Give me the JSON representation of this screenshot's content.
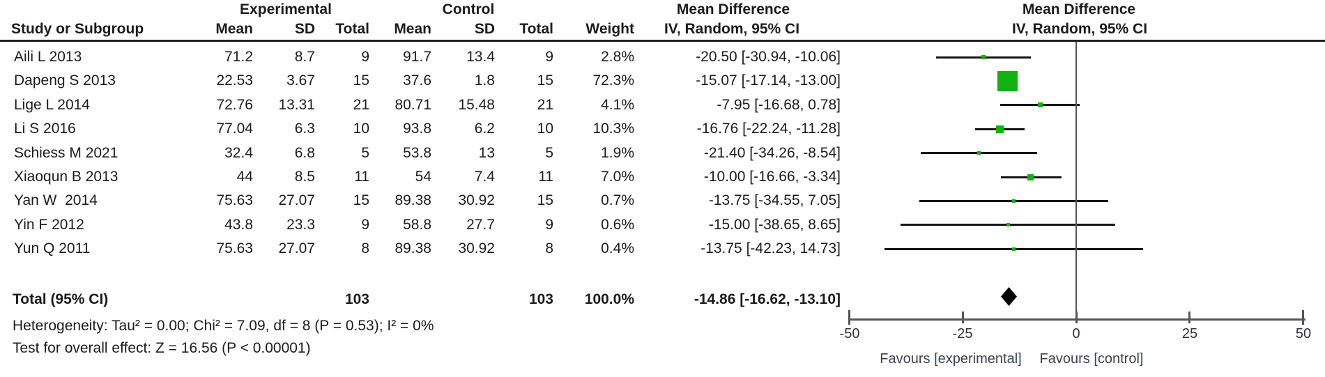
{
  "header": {
    "group_experimental": "Experimental",
    "group_control": "Control",
    "group_md_left": "Mean Difference",
    "group_md_right": "Mean Difference",
    "col_study": "Study or Subgroup",
    "col_mean_exp": "Mean",
    "col_sd_exp": "SD",
    "col_total_exp": "Total",
    "col_mean_ctl": "Mean",
    "col_sd_ctl": "SD",
    "col_total_ctl": "Total",
    "col_weight": "Weight",
    "col_ci_left": "IV, Random, 95% CI",
    "col_ci_right": "IV, Random, 95% CI"
  },
  "chart_data": {
    "type": "forest",
    "effect_measure": "Mean Difference",
    "method_label": "IV, Random, 95% CI",
    "studies": [
      {
        "name": "Aili L 2013",
        "exp_mean": "71.2",
        "exp_sd": "8.7",
        "exp_total": "9",
        "ctl_mean": "91.7",
        "ctl_sd": "13.4",
        "ctl_total": "9",
        "weight": "2.8%",
        "weight_value": 2.8,
        "ci_label": "-20.50 [-30.94, -10.06]",
        "md": -20.5,
        "ci_low": -30.94,
        "ci_high": -10.06
      },
      {
        "name": "Dapeng S 2013",
        "exp_mean": "22.53",
        "exp_sd": "3.67",
        "exp_total": "15",
        "ctl_mean": "37.6",
        "ctl_sd": "1.8",
        "ctl_total": "15",
        "weight": "72.3%",
        "weight_value": 72.3,
        "ci_label": "-15.07 [-17.14, -13.00]",
        "md": -15.07,
        "ci_low": -17.14,
        "ci_high": -13.0
      },
      {
        "name": "Lige L 2014",
        "exp_mean": "72.76",
        "exp_sd": "13.31",
        "exp_total": "21",
        "ctl_mean": "80.71",
        "ctl_sd": "15.48",
        "ctl_total": "21",
        "weight": "4.1%",
        "weight_value": 4.1,
        "ci_label": "-7.95 [-16.68, 0.78]",
        "md": -7.95,
        "ci_low": -16.68,
        "ci_high": 0.78
      },
      {
        "name": "Li S 2016",
        "exp_mean": "77.04",
        "exp_sd": "6.3",
        "exp_total": "10",
        "ctl_mean": "93.8",
        "ctl_sd": "6.2",
        "ctl_total": "10",
        "weight": "10.3%",
        "weight_value": 10.3,
        "ci_label": "-16.76 [-22.24, -11.28]",
        "md": -16.76,
        "ci_low": -22.24,
        "ci_high": -11.28
      },
      {
        "name": "Schiess M 2021",
        "exp_mean": "32.4",
        "exp_sd": "6.8",
        "exp_total": "5",
        "ctl_mean": "53.8",
        "ctl_sd": "13",
        "ctl_total": "5",
        "weight": "1.9%",
        "weight_value": 1.9,
        "ci_label": "-21.40 [-34.26, -8.54]",
        "md": -21.4,
        "ci_low": -34.26,
        "ci_high": -8.54
      },
      {
        "name": "Xiaoqun B 2013",
        "exp_mean": "44",
        "exp_sd": "8.5",
        "exp_total": "11",
        "ctl_mean": "54",
        "ctl_sd": "7.4",
        "ctl_total": "11",
        "weight": "7.0%",
        "weight_value": 7.0,
        "ci_label": "-10.00 [-16.66, -3.34]",
        "md": -10.0,
        "ci_low": -16.66,
        "ci_high": -3.34
      },
      {
        "name": "Yan W  2014",
        "exp_mean": "75.63",
        "exp_sd": "27.07",
        "exp_total": "15",
        "ctl_mean": "89.38",
        "ctl_sd": "30.92",
        "ctl_total": "15",
        "weight": "0.7%",
        "weight_value": 0.7,
        "ci_label": "-13.75 [-34.55, 7.05]",
        "md": -13.75,
        "ci_low": -34.55,
        "ci_high": 7.05
      },
      {
        "name": "Yin F 2012",
        "exp_mean": "43.8",
        "exp_sd": "23.3",
        "exp_total": "9",
        "ctl_mean": "58.8",
        "ctl_sd": "27.7",
        "ctl_total": "9",
        "weight": "0.6%",
        "weight_value": 0.6,
        "ci_label": "-15.00 [-38.65, 8.65]",
        "md": -15.0,
        "ci_low": -38.65,
        "ci_high": 8.65
      },
      {
        "name": "Yun Q 2011",
        "exp_mean": "75.63",
        "exp_sd": "27.07",
        "exp_total": "8",
        "ctl_mean": "89.38",
        "ctl_sd": "30.92",
        "ctl_total": "8",
        "weight": "0.4%",
        "weight_value": 0.4,
        "ci_label": "-13.75 [-42.23, 14.73]",
        "md": -13.75,
        "ci_low": -42.23,
        "ci_high": 14.73
      }
    ],
    "total": {
      "label": "Total (95% CI)",
      "exp_total": "103",
      "ctl_total": "103",
      "weight": "100.0%",
      "ci_label": "-14.86 [-16.62, -13.10]",
      "md": -14.86,
      "ci_low": -16.62,
      "ci_high": -13.1
    },
    "heterogeneity_text": "Heterogeneity: Tau² = 0.00; Chi² = 7.09, df = 8 (P = 0.53); I² = 0%",
    "overall_effect_text": "Test for overall effect: Z = 16.56 (P < 0.00001)",
    "axis": {
      "min": -50,
      "max": 50,
      "tick_values": [
        -50,
        -25,
        0,
        25,
        50
      ],
      "tick_labels": [
        "-50",
        "-25",
        "0",
        "25",
        "50"
      ]
    },
    "favours_left": "Favours [experimental]",
    "favours_right": "Favours [control]",
    "colors": {
      "marker_green": "#11b111",
      "diamond_black": "#000000",
      "axis_gray": "#555555",
      "ci_line": "#151515"
    }
  }
}
